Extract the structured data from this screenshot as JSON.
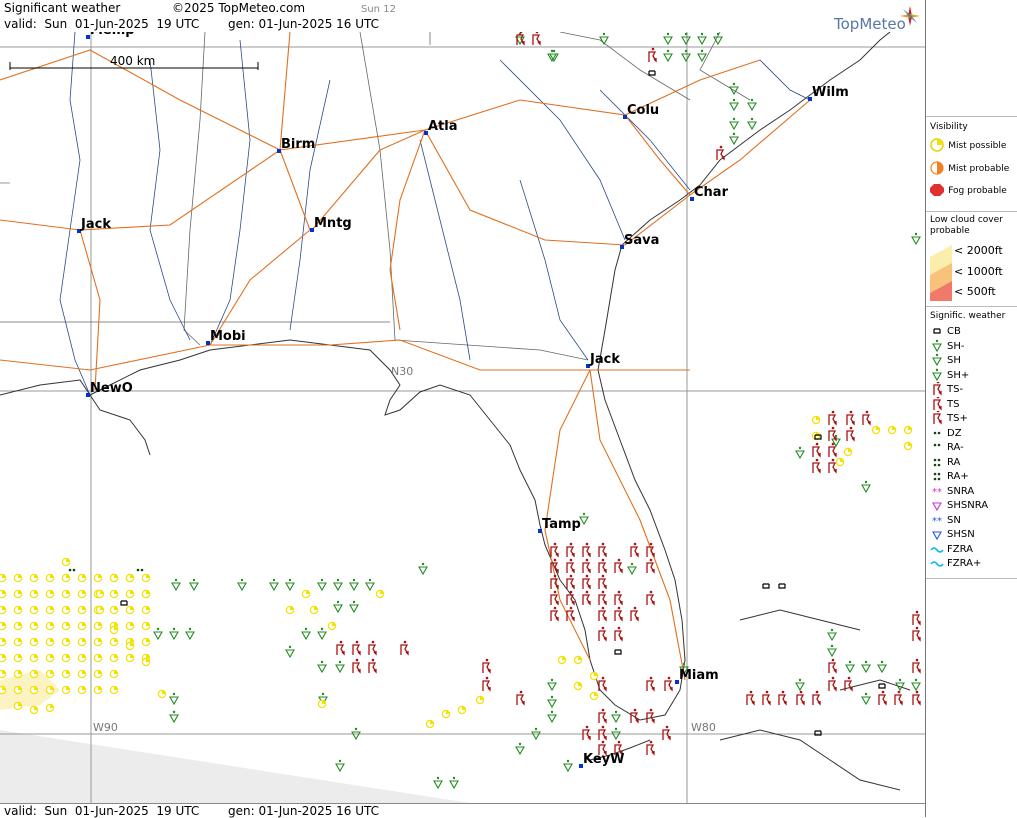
{
  "header": {
    "title": "Significant weather",
    "copyright": "©2025 TopMeteo.com",
    "valid": "valid:  Sun  01-Jun-2025  19 UTC",
    "generated": "gen: 01-Jun-2025 16 UTC",
    "run": "Sun 12",
    "logo": "TopMeteo"
  },
  "footer": {
    "valid": "valid:  Sun  01-Jun-2025  19 UTC",
    "generated": "gen: 01-Jun-2025 16 UTC"
  },
  "map": {
    "scale_label": "400 km",
    "grid_labels": [
      "N30",
      "W90",
      "W80"
    ],
    "cities": [
      {
        "name": "Wilm"
      },
      {
        "name": "Colu"
      },
      {
        "name": "Atla"
      },
      {
        "name": "Birm"
      },
      {
        "name": "Char"
      },
      {
        "name": "Jack"
      },
      {
        "name": "Mntg"
      },
      {
        "name": "Sava"
      },
      {
        "name": "Mobi"
      },
      {
        "name": "Jack"
      },
      {
        "name": "NewO"
      },
      {
        "name": "Tamp"
      },
      {
        "name": "Miam"
      },
      {
        "name": "KeyW"
      },
      {
        "name": "Memp"
      }
    ]
  },
  "legend": {
    "visibility_title": "Visibility",
    "visibility": [
      "Mist possible",
      "Mist probable",
      "Fog probable"
    ],
    "lowcloud_title": "Low cloud cover probable",
    "lowcloud": [
      "< 2000ft",
      "< 1000ft",
      "<  500ft"
    ],
    "sigwx_title": "Signific. weather",
    "sigwx": [
      "CB",
      "SH-",
      "SH",
      "SH+",
      "TS-",
      "TS",
      "TS+",
      "DZ",
      "RA-",
      "RA",
      "RA+",
      "SNRA",
      "SHSNRA",
      "SN",
      "SHSN",
      "FZRA",
      "FZRA+"
    ],
    "colors": {
      "mist_possible": "#f2e200",
      "mist_probable": "#f08020",
      "fog_probable": "#e03030",
      "shower": "#228b22",
      "thunder": "#aa1111",
      "rain": "#114411",
      "snow": "#cc33cc",
      "freezing": "#00bbee",
      "roads": "#e07020",
      "rivers": "#2a4a8a"
    }
  }
}
